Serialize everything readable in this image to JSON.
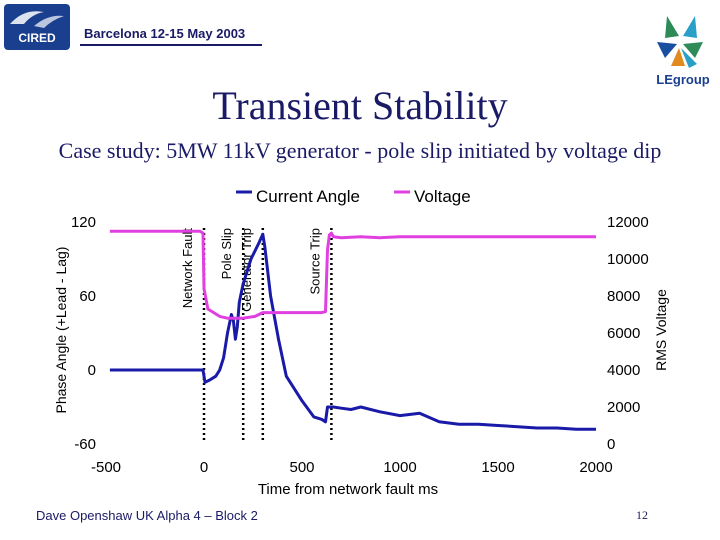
{
  "header": {
    "logo_text": "CIRED",
    "event": "Barcelona 12-15 May 2003",
    "partner_logo_text": "LEgroup"
  },
  "slide": {
    "title": "Transient Stability",
    "subtitle": "Case study: 5MW 11kV generator - pole slip initiated by voltage dip"
  },
  "footer": {
    "author": "Dave Openshaw UK Alpha 4 – Block 2",
    "page": "12"
  },
  "colors": {
    "current_angle": "#1a1aa8",
    "voltage": "#e040e0",
    "text": "#1a1a66"
  },
  "chart_data": {
    "type": "line",
    "xlabel": "Time from network fault ms",
    "ylabel_left": "Phase Angle (+Lead - Lag)",
    "ylabel_right": "RMS Voltage",
    "xlim": [
      -500,
      2000
    ],
    "ylim_left": [
      -60,
      120
    ],
    "ylim_right": [
      0,
      12000
    ],
    "x_ticks": [
      "-500",
      "0",
      "500",
      "1000",
      "1500",
      "2000"
    ],
    "y_left_ticks": [
      "-60",
      "0",
      "60",
      "120"
    ],
    "y_right_ticks": [
      "0",
      "2000",
      "4000",
      "6000",
      "8000",
      "10000",
      "12000"
    ],
    "legend_position": "top",
    "series": [
      {
        "name": "Current Angle",
        "axis": "left",
        "x": [
          -480,
          -300,
          -100,
          -5,
          5,
          30,
          60,
          80,
          100,
          120,
          140,
          150,
          160,
          170,
          180,
          200,
          240,
          280,
          300,
          310,
          340,
          380,
          420,
          500,
          560,
          600,
          620,
          630,
          640,
          660,
          700,
          750,
          800,
          900,
          1000,
          1100,
          1200,
          1300,
          1400,
          1500,
          1600,
          1700,
          1800,
          1900,
          2000
        ],
        "values": [
          0,
          0,
          0,
          0,
          -10,
          -8,
          -5,
          0,
          10,
          30,
          45,
          40,
          25,
          35,
          55,
          70,
          90,
          103,
          110,
          100,
          60,
          25,
          -5,
          -25,
          -38,
          -40,
          -42,
          -30,
          -30,
          -30,
          -31,
          -32,
          -30,
          -34,
          -37,
          -35,
          -42,
          -44,
          -44,
          -45,
          -46,
          -47,
          -47,
          -48,
          -48
        ]
      },
      {
        "name": "Voltage",
        "axis": "right",
        "x": [
          -480,
          -300,
          -100,
          -20,
          -5,
          0,
          20,
          80,
          120,
          200,
          260,
          300,
          400,
          500,
          560,
          600,
          620,
          630,
          640,
          650,
          660,
          700,
          800,
          900,
          1000,
          1200,
          1400,
          1600,
          1800,
          2000
        ],
        "values": [
          11500,
          11500,
          11500,
          11500,
          11400,
          8400,
          7300,
          6900,
          6800,
          6800,
          6900,
          7100,
          7100,
          7100,
          7100,
          7100,
          7150,
          10500,
          11300,
          11400,
          11200,
          11150,
          11200,
          11150,
          11200,
          11200,
          11200,
          11200,
          11200,
          11200
        ]
      }
    ],
    "events": [
      {
        "x": 0,
        "label": "Network Fault"
      },
      {
        "x": 200,
        "label": "Pole Slip"
      },
      {
        "x": 300,
        "label": "Generator Trip"
      },
      {
        "x": 650,
        "label": "Source Trip"
      }
    ]
  }
}
